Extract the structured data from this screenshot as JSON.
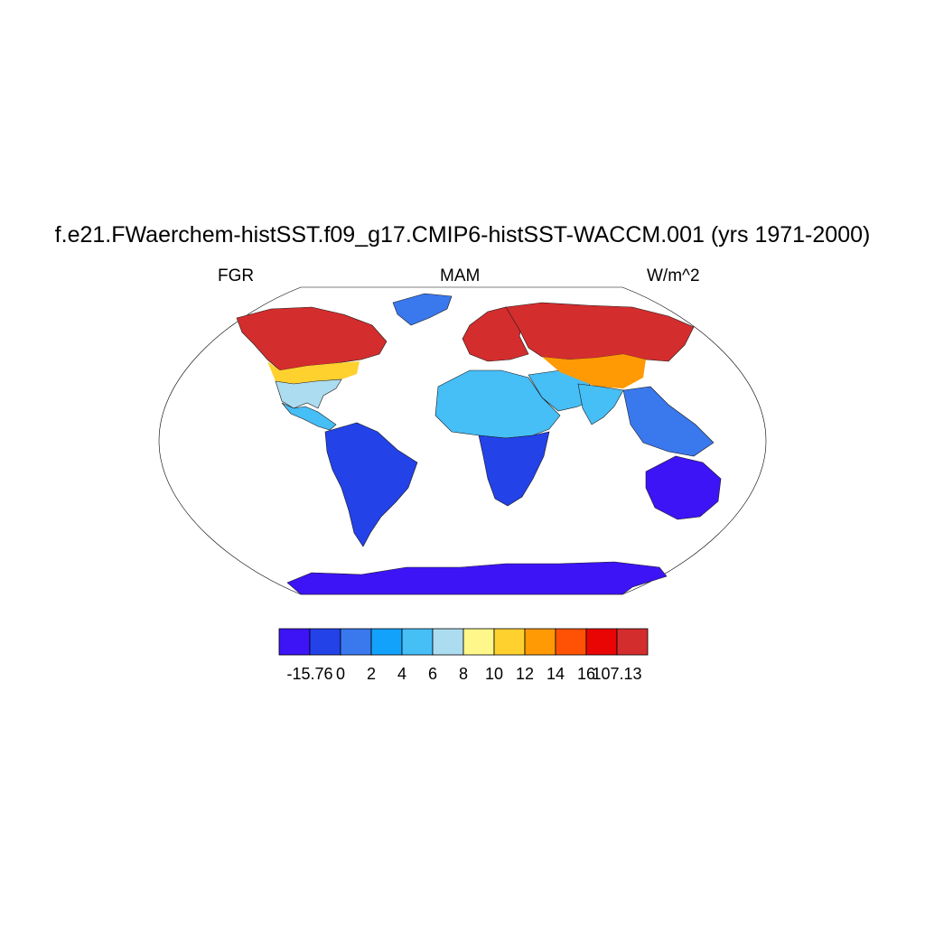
{
  "title": "f.e21.FWaerchem-histSST.f09_g17.CMIP6-histSST-WACCM.001 (yrs 1971-2000)",
  "left_string": "FGR",
  "center_string": "MAM",
  "right_string": "W/m^2",
  "map": {
    "projection": "Robinson",
    "region": "global",
    "ocean_color": "#ffffff",
    "coastline_color": "#000000"
  },
  "colorbar": {
    "colors": [
      "#3d14f5",
      "#2342e8",
      "#3a78ee",
      "#13a2fb",
      "#46bef6",
      "#acdcf0",
      "#fff78a",
      "#ffd12f",
      "#ff9a04",
      "#ff5205",
      "#ea0505",
      "#d42d2e"
    ],
    "labels": [
      "-15.76",
      "0",
      "2",
      "4",
      "6",
      "8",
      "10",
      "12",
      "14",
      "16",
      "107.13"
    ]
  },
  "regions": [
    {
      "name": "north-america-north",
      "color": "#d42d2e"
    },
    {
      "name": "north-america-mid",
      "color": "#ffd12f"
    },
    {
      "name": "north-america-south",
      "color": "#acdcf0"
    },
    {
      "name": "central-america",
      "color": "#46bef6"
    },
    {
      "name": "south-america",
      "color": "#2342e8"
    },
    {
      "name": "greenland",
      "color": "#3a78ee"
    },
    {
      "name": "europe",
      "color": "#d42d2e"
    },
    {
      "name": "north-africa",
      "color": "#46bef6"
    },
    {
      "name": "south-africa",
      "color": "#2342e8"
    },
    {
      "name": "middle-east",
      "color": "#46bef6"
    },
    {
      "name": "siberia",
      "color": "#d42d2e"
    },
    {
      "name": "central-asia",
      "color": "#ff9a04"
    },
    {
      "name": "india",
      "color": "#46bef6"
    },
    {
      "name": "southeast-asia",
      "color": "#3a78ee"
    },
    {
      "name": "australia",
      "color": "#3d14f5"
    },
    {
      "name": "antarctica",
      "color": "#3d14f5"
    }
  ]
}
